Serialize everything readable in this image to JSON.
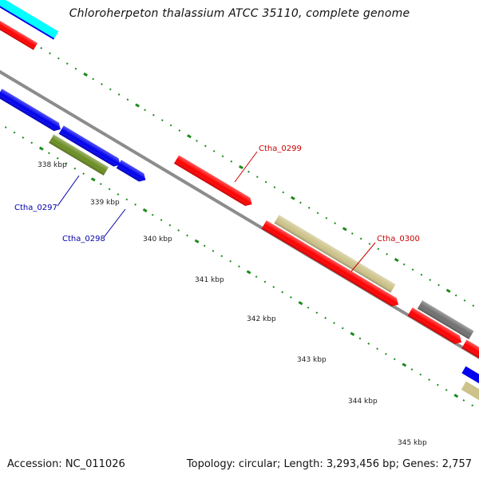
{
  "title": "Chloroherpeton thalassium ATCC 35110, complete genome",
  "footer": {
    "accession": "Accession: NC_011026",
    "summary": "Topology: circular; Length: 3,293,456 bp; Genes: 2,757"
  },
  "colors": {
    "backbone": "#8c8c8c",
    "tick": "#1a8a1a",
    "red": "#ff0000",
    "blue": "#0000ee",
    "olive": "#6b8e23",
    "khaki": "#cdc38a",
    "gray": "#707070",
    "cyan": "#00ffff",
    "label_blue": "#0000aa",
    "label_red": "#cc0000"
  },
  "ticks": [
    {
      "label": "338 kbp"
    },
    {
      "label": "339 kbp"
    },
    {
      "label": "340 kbp"
    },
    {
      "label": "341 kbp"
    },
    {
      "label": "342 kbp"
    },
    {
      "label": "343 kbp"
    },
    {
      "label": "344 kbp"
    },
    {
      "label": "345 kbp"
    }
  ],
  "gene_labels": [
    {
      "name": "Ctha_0297",
      "color": "label_blue"
    },
    {
      "name": "Ctha_0298",
      "color": "label_blue"
    },
    {
      "name": "Ctha_0299",
      "color": "label_red"
    },
    {
      "name": "Ctha_0300",
      "color": "label_red"
    }
  ]
}
